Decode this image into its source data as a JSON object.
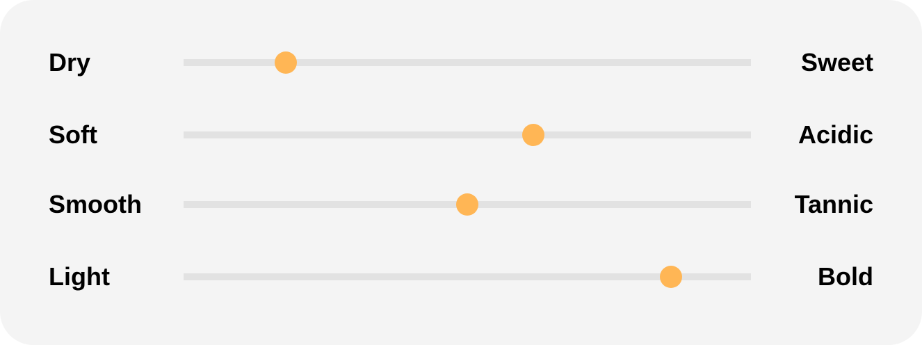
{
  "colors": {
    "background": "#f4f4f4",
    "track": "#e2e2e2",
    "thumb": "#ffb655"
  },
  "sliders": [
    {
      "left_label": "Dry",
      "right_label": "Sweet",
      "value": 0.18
    },
    {
      "left_label": "Soft",
      "right_label": "Acidic",
      "value": 0.616
    },
    {
      "left_label": "Smooth",
      "right_label": "Tannic",
      "value": 0.5
    },
    {
      "left_label": "Light",
      "right_label": "Bold",
      "value": 0.859
    }
  ]
}
